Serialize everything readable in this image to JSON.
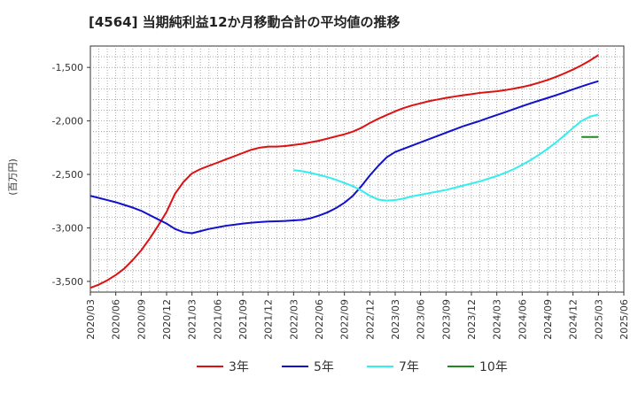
{
  "chart_data": {
    "type": "line",
    "title": "[4564]  当期純利益12か月移動合計の平均値の推移",
    "ylabel": "(百万円)",
    "xlabel": "",
    "ylim": [
      -3600,
      -1300
    ],
    "yticks": [
      -1500,
      -2000,
      -2500,
      -3000,
      -3500
    ],
    "ytick_labels": [
      "-1,500",
      "-2,000",
      "-2,500",
      "-3,000",
      "-3,500"
    ],
    "xlim": [
      "2020-03",
      "2025-06"
    ],
    "xtick_labels": [
      "2020/03",
      "2020/06",
      "2020/09",
      "2020/12",
      "2021/03",
      "2021/06",
      "2021/09",
      "2021/12",
      "2022/03",
      "2022/06",
      "2022/09",
      "2022/12",
      "2023/03",
      "2023/06",
      "2023/09",
      "2023/12",
      "2024/03",
      "2024/06",
      "2024/09",
      "2024/12",
      "2025/03",
      "2025/06"
    ],
    "grid": true,
    "legend_position": "bottom",
    "series": [
      {
        "name": "3年",
        "color": "#dd1111",
        "points": [
          [
            "2020-03",
            -3560
          ],
          [
            "2020-04",
            -3530
          ],
          [
            "2020-05",
            -3490
          ],
          [
            "2020-06",
            -3440
          ],
          [
            "2020-07",
            -3380
          ],
          [
            "2020-08",
            -3300
          ],
          [
            "2020-09",
            -3210
          ],
          [
            "2020-10",
            -3100
          ],
          [
            "2020-11",
            -2980
          ],
          [
            "2020-12",
            -2850
          ],
          [
            "2021-01",
            -2680
          ],
          [
            "2021-02",
            -2570
          ],
          [
            "2021-03",
            -2490
          ],
          [
            "2021-04",
            -2450
          ],
          [
            "2021-05",
            -2420
          ],
          [
            "2021-06",
            -2390
          ],
          [
            "2021-07",
            -2360
          ],
          [
            "2021-08",
            -2330
          ],
          [
            "2021-09",
            -2300
          ],
          [
            "2021-10",
            -2270
          ],
          [
            "2021-11",
            -2250
          ],
          [
            "2021-12",
            -2240
          ],
          [
            "2022-01",
            -2240
          ],
          [
            "2022-02",
            -2235
          ],
          [
            "2022-03",
            -2225
          ],
          [
            "2022-04",
            -2215
          ],
          [
            "2022-05",
            -2200
          ],
          [
            "2022-06",
            -2185
          ],
          [
            "2022-07",
            -2165
          ],
          [
            "2022-08",
            -2145
          ],
          [
            "2022-09",
            -2125
          ],
          [
            "2022-10",
            -2100
          ],
          [
            "2022-11",
            -2065
          ],
          [
            "2022-12",
            -2020
          ],
          [
            "2023-01",
            -1980
          ],
          [
            "2023-02",
            -1945
          ],
          [
            "2023-03",
            -1910
          ],
          [
            "2023-04",
            -1880
          ],
          [
            "2023-05",
            -1855
          ],
          [
            "2023-06",
            -1835
          ],
          [
            "2023-07",
            -1815
          ],
          [
            "2023-08",
            -1800
          ],
          [
            "2023-09",
            -1785
          ],
          [
            "2023-10",
            -1772
          ],
          [
            "2023-11",
            -1760
          ],
          [
            "2023-12",
            -1750
          ],
          [
            "2024-01",
            -1738
          ],
          [
            "2024-02",
            -1730
          ],
          [
            "2024-03",
            -1723
          ],
          [
            "2024-04",
            -1712
          ],
          [
            "2024-05",
            -1698
          ],
          [
            "2024-06",
            -1683
          ],
          [
            "2024-07",
            -1665
          ],
          [
            "2024-08",
            -1642
          ],
          [
            "2024-09",
            -1617
          ],
          [
            "2024-10",
            -1588
          ],
          [
            "2024-11",
            -1555
          ],
          [
            "2024-12",
            -1520
          ],
          [
            "2025-01",
            -1480
          ],
          [
            "2025-02",
            -1435
          ],
          [
            "2025-03",
            -1385
          ]
        ]
      },
      {
        "name": "5年",
        "color": "#1111cc",
        "points": [
          [
            "2020-03",
            -2700
          ],
          [
            "2020-04",
            -2720
          ],
          [
            "2020-05",
            -2740
          ],
          [
            "2020-06",
            -2760
          ],
          [
            "2020-07",
            -2785
          ],
          [
            "2020-08",
            -2810
          ],
          [
            "2020-09",
            -2840
          ],
          [
            "2020-10",
            -2880
          ],
          [
            "2020-11",
            -2920
          ],
          [
            "2020-12",
            -2960
          ],
          [
            "2021-01",
            -3010
          ],
          [
            "2021-02",
            -3040
          ],
          [
            "2021-03",
            -3050
          ],
          [
            "2021-04",
            -3030
          ],
          [
            "2021-05",
            -3010
          ],
          [
            "2021-06",
            -2995
          ],
          [
            "2021-07",
            -2980
          ],
          [
            "2021-08",
            -2970
          ],
          [
            "2021-09",
            -2960
          ],
          [
            "2021-10",
            -2952
          ],
          [
            "2021-11",
            -2945
          ],
          [
            "2021-12",
            -2940
          ],
          [
            "2022-01",
            -2938
          ],
          [
            "2022-02",
            -2935
          ],
          [
            "2022-03",
            -2930
          ],
          [
            "2022-04",
            -2925
          ],
          [
            "2022-05",
            -2910
          ],
          [
            "2022-06",
            -2885
          ],
          [
            "2022-07",
            -2855
          ],
          [
            "2022-08",
            -2815
          ],
          [
            "2022-09",
            -2765
          ],
          [
            "2022-10",
            -2700
          ],
          [
            "2022-11",
            -2610
          ],
          [
            "2022-12",
            -2510
          ],
          [
            "2023-01",
            -2420
          ],
          [
            "2023-02",
            -2340
          ],
          [
            "2023-03",
            -2290
          ],
          [
            "2023-04",
            -2260
          ],
          [
            "2023-05",
            -2230
          ],
          [
            "2023-06",
            -2200
          ],
          [
            "2023-07",
            -2170
          ],
          [
            "2023-08",
            -2140
          ],
          [
            "2023-09",
            -2110
          ],
          [
            "2023-10",
            -2080
          ],
          [
            "2023-11",
            -2050
          ],
          [
            "2023-12",
            -2025
          ],
          [
            "2024-01",
            -2000
          ],
          [
            "2024-02",
            -1972
          ],
          [
            "2024-03",
            -1945
          ],
          [
            "2024-04",
            -1918
          ],
          [
            "2024-05",
            -1890
          ],
          [
            "2024-06",
            -1862
          ],
          [
            "2024-07",
            -1835
          ],
          [
            "2024-08",
            -1810
          ],
          [
            "2024-09",
            -1785
          ],
          [
            "2024-10",
            -1760
          ],
          [
            "2024-11",
            -1733
          ],
          [
            "2024-12",
            -1705
          ],
          [
            "2025-01",
            -1678
          ],
          [
            "2025-02",
            -1652
          ],
          [
            "2025-03",
            -1628
          ]
        ]
      },
      {
        "name": "7年",
        "color": "#33eeee",
        "points": [
          [
            "2022-03",
            -2460
          ],
          [
            "2022-04",
            -2470
          ],
          [
            "2022-05",
            -2485
          ],
          [
            "2022-06",
            -2505
          ],
          [
            "2022-07",
            -2525
          ],
          [
            "2022-08",
            -2550
          ],
          [
            "2022-09",
            -2580
          ],
          [
            "2022-10",
            -2610
          ],
          [
            "2022-11",
            -2650
          ],
          [
            "2022-12",
            -2700
          ],
          [
            "2023-01",
            -2735
          ],
          [
            "2023-02",
            -2745
          ],
          [
            "2023-03",
            -2740
          ],
          [
            "2023-04",
            -2725
          ],
          [
            "2023-05",
            -2705
          ],
          [
            "2023-06",
            -2690
          ],
          [
            "2023-07",
            -2675
          ],
          [
            "2023-08",
            -2660
          ],
          [
            "2023-09",
            -2645
          ],
          [
            "2023-10",
            -2625
          ],
          [
            "2023-11",
            -2605
          ],
          [
            "2023-12",
            -2585
          ],
          [
            "2024-01",
            -2565
          ],
          [
            "2024-02",
            -2540
          ],
          [
            "2024-03",
            -2515
          ],
          [
            "2024-04",
            -2485
          ],
          [
            "2024-05",
            -2450
          ],
          [
            "2024-06",
            -2410
          ],
          [
            "2024-07",
            -2365
          ],
          [
            "2024-08",
            -2315
          ],
          [
            "2024-09",
            -2260
          ],
          [
            "2024-10",
            -2200
          ],
          [
            "2024-11",
            -2135
          ],
          [
            "2024-12",
            -2065
          ],
          [
            "2025-01",
            -2000
          ],
          [
            "2025-02",
            -1960
          ],
          [
            "2025-03",
            -1940
          ]
        ]
      },
      {
        "name": "10年",
        "color": "#228822",
        "points": [
          [
            "2025-01",
            -2150
          ],
          [
            "2025-02",
            -2150
          ],
          [
            "2025-03",
            -2150
          ]
        ]
      }
    ]
  }
}
